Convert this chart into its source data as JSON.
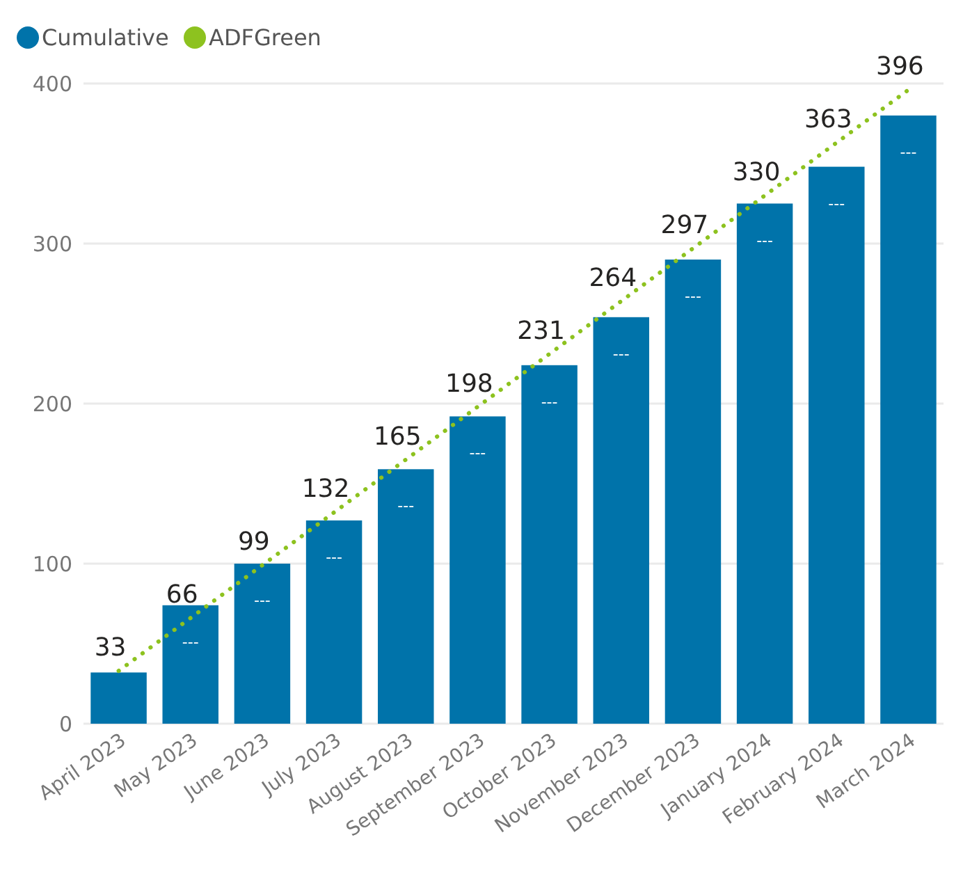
{
  "chart_data": {
    "type": "bar",
    "categories": [
      "April 2023",
      "May 2023",
      "June 2023",
      "July 2023",
      "August 2023",
      "September 2023",
      "October 2023",
      "November 2023",
      "December 2023",
      "January 2024",
      "February 2024",
      "March 2024"
    ],
    "series": [
      {
        "name": "Cumulative",
        "color": "#0073aa",
        "values": [
          32,
          74,
          100,
          127,
          159,
          192,
          224,
          254,
          290,
          325,
          348,
          380
        ],
        "value_labels": [
          null,
          "---",
          "---",
          "---",
          "---",
          "---",
          "---",
          "---",
          "---",
          "---",
          "---",
          "---"
        ]
      },
      {
        "name": "ADFGreen",
        "type": "line",
        "color": "#8dc21f",
        "line_style": "dotted",
        "marker": "none",
        "data_labels": true,
        "values": [
          33,
          66,
          99,
          132,
          165,
          198,
          231,
          264,
          297,
          330,
          363,
          396
        ]
      }
    ],
    "ylim": [
      0,
      400
    ],
    "yticks": [
      0,
      100,
      200,
      300,
      400
    ],
    "grid": "y",
    "legend": "top left"
  }
}
